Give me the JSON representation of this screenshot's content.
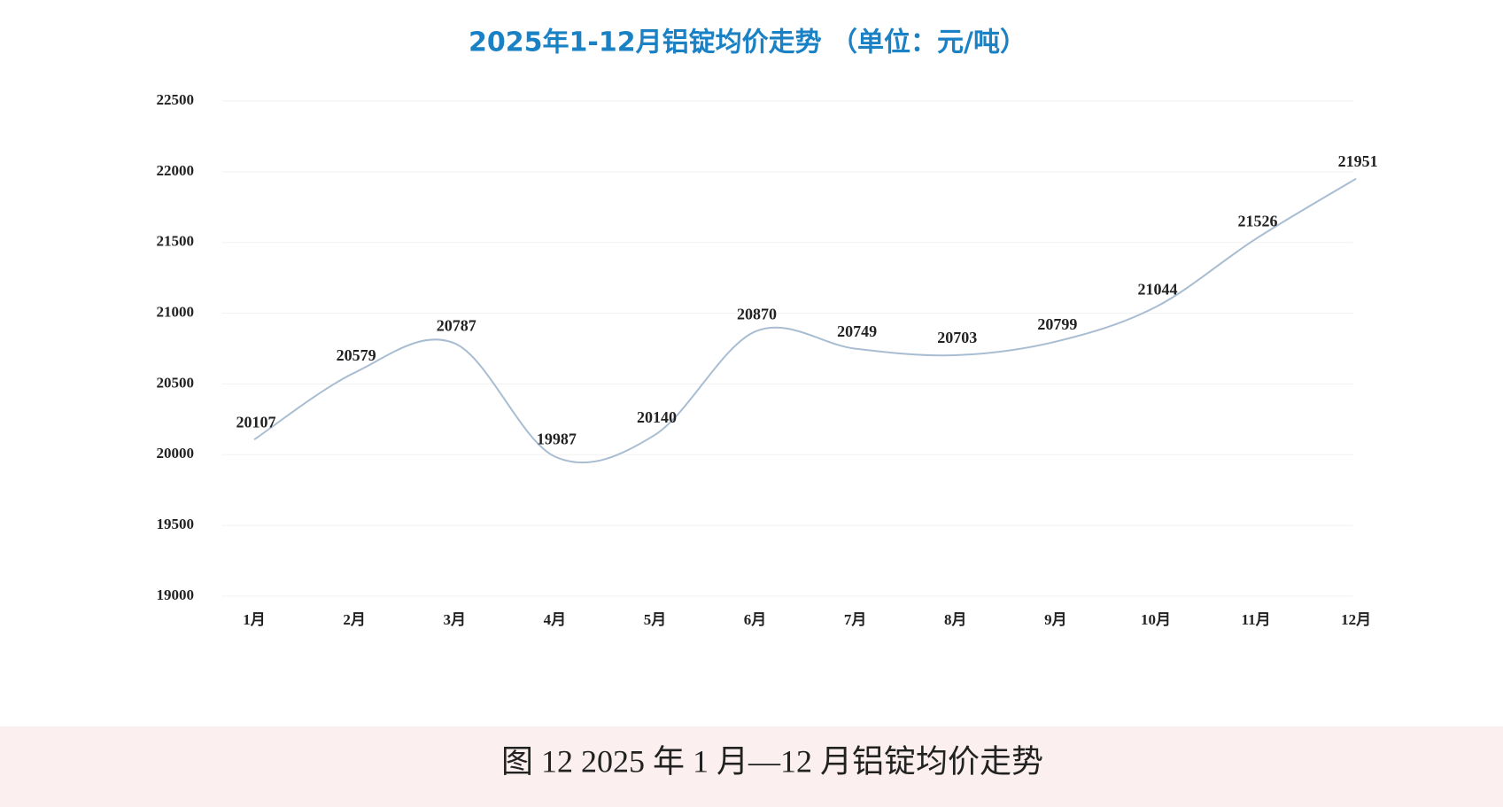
{
  "chart_data": {
    "type": "line",
    "title": "2025年1-12月铝锭均价走势 （单位：元/吨）",
    "caption": "图 12 2025 年 1 月—12 月铝锭均价走势",
    "categories": [
      "1月",
      "2月",
      "3月",
      "4月",
      "5月",
      "6月",
      "7月",
      "8月",
      "9月",
      "10月",
      "11月",
      "12月"
    ],
    "values": [
      20107,
      20579,
      20787,
      19987,
      20140,
      20870,
      20749,
      20703,
      20799,
      21044,
      21526,
      21951
    ],
    "color": "#a9bdd2",
    "ylim": [
      19000,
      22500
    ],
    "yticks": [
      19000,
      19500,
      20000,
      20500,
      21000,
      21500,
      22000,
      22500
    ],
    "grid": true
  }
}
